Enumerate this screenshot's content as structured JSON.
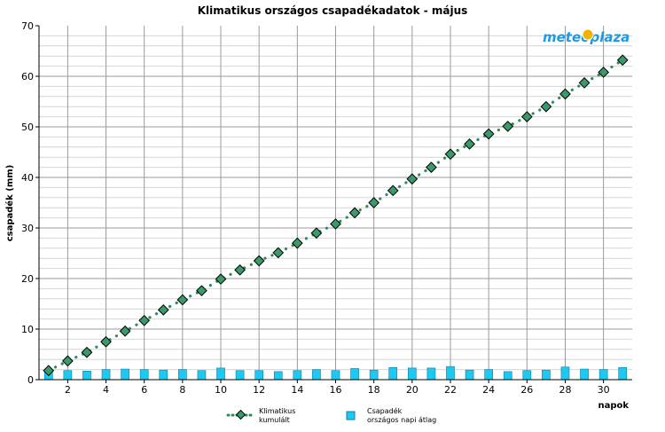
{
  "chart_data": {
    "type": "bar",
    "title": "Klimatikus országos csapadékadatok - május",
    "xlabel": "napok",
    "ylabel": "csapadék (mm)",
    "ylim": [
      0,
      70
    ],
    "yticks": [
      0,
      10,
      20,
      30,
      40,
      50,
      60,
      70
    ],
    "xlim": [
      0.5,
      31.5
    ],
    "xticks": [
      2,
      4,
      6,
      8,
      10,
      12,
      14,
      16,
      18,
      20,
      22,
      24,
      26,
      28,
      30
    ],
    "grid": true,
    "legend_position": "bottom",
    "x": [
      1,
      2,
      3,
      4,
      5,
      6,
      7,
      8,
      9,
      10,
      11,
      12,
      13,
      14,
      15,
      16,
      17,
      18,
      19,
      20,
      21,
      22,
      23,
      24,
      25,
      26,
      27,
      28,
      29,
      30,
      31
    ],
    "series": [
      {
        "name": "Klimatikus kumulált",
        "type": "line",
        "color": "#2e8b57",
        "marker_color": "#3a9a6a",
        "values": [
          1.8,
          3.7,
          5.4,
          7.5,
          9.6,
          11.7,
          13.8,
          15.8,
          17.6,
          19.9,
          21.7,
          23.5,
          25.1,
          27.0,
          29.0,
          30.8,
          33.0,
          35.0,
          37.4,
          39.7,
          42.0,
          44.6,
          46.6,
          48.6,
          50.1,
          52.0,
          54.0,
          56.5,
          58.7,
          60.8,
          63.2
        ]
      },
      {
        "name": "Csapadék\nországos napi átlag",
        "type": "bar",
        "color": "#1ec8f0",
        "values": [
          1.8,
          1.8,
          1.7,
          2.0,
          2.1,
          2.0,
          1.9,
          2.0,
          1.8,
          2.3,
          1.8,
          1.8,
          1.6,
          1.8,
          2.0,
          1.8,
          2.2,
          1.9,
          2.4,
          2.3,
          2.3,
          2.6,
          1.9,
          2.0,
          1.6,
          1.8,
          1.9,
          2.5,
          2.1,
          2.0,
          2.4
        ]
      }
    ]
  },
  "legend": {
    "line_label_1": "Klimatikus",
    "line_label_2": "kumulált",
    "bar_label_1": "Csapadék",
    "bar_label_2": "országos napi átlag"
  },
  "logo": {
    "text_left": "meteo",
    "text_right": "plaza",
    "color": "#1e9be0",
    "accent": "#f0b400"
  }
}
